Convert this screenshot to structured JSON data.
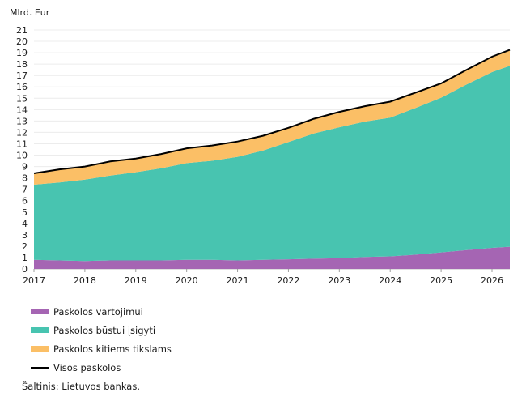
{
  "chart_data": {
    "type": "area",
    "ylabel": "Mlrd. Eur",
    "ylim": [
      0,
      21
    ],
    "yticks": [
      0,
      1,
      2,
      3,
      4,
      5,
      6,
      7,
      8,
      9,
      10,
      11,
      12,
      13,
      14,
      15,
      16,
      17,
      18,
      19,
      20,
      21
    ],
    "xlim": [
      2017.0,
      2026.35
    ],
    "xticks": [
      "2017",
      "2018",
      "2019",
      "2020",
      "2021",
      "2022",
      "2023",
      "2024",
      "2025",
      "2026"
    ],
    "grid": true,
    "stacked": true,
    "x": [
      2017.0,
      2017.5,
      2018.0,
      2018.5,
      2019.0,
      2019.5,
      2020.0,
      2020.5,
      2021.0,
      2021.5,
      2022.0,
      2022.5,
      2023.0,
      2023.5,
      2024.0,
      2024.5,
      2025.0,
      2025.5,
      2026.0,
      2026.35
    ],
    "series": [
      {
        "name": "Paskolos vartojimui",
        "color": "#a565b3",
        "values": [
          0.8,
          0.75,
          0.7,
          0.75,
          0.75,
          0.75,
          0.8,
          0.8,
          0.75,
          0.8,
          0.85,
          0.9,
          0.95,
          1.05,
          1.1,
          1.25,
          1.45,
          1.65,
          1.85,
          1.95
        ]
      },
      {
        "name": "Paskolos būstui įsigyti",
        "color": "#48c4b0",
        "values": [
          6.6,
          6.85,
          7.15,
          7.45,
          7.75,
          8.1,
          8.5,
          8.7,
          9.1,
          9.6,
          10.3,
          11.0,
          11.5,
          11.9,
          12.2,
          12.9,
          13.6,
          14.55,
          15.45,
          15.9
        ]
      },
      {
        "name": "Paskolos kitiems tikslams",
        "color": "#fbbf66",
        "values": [
          1.0,
          1.15,
          1.15,
          1.25,
          1.2,
          1.25,
          1.3,
          1.35,
          1.35,
          1.3,
          1.25,
          1.3,
          1.35,
          1.35,
          1.4,
          1.35,
          1.25,
          1.3,
          1.35,
          1.4
        ]
      }
    ],
    "total": {
      "name": "Visos paskolos",
      "color": "#000000"
    }
  },
  "source": "Šaltinis: Lietuvos bankas."
}
